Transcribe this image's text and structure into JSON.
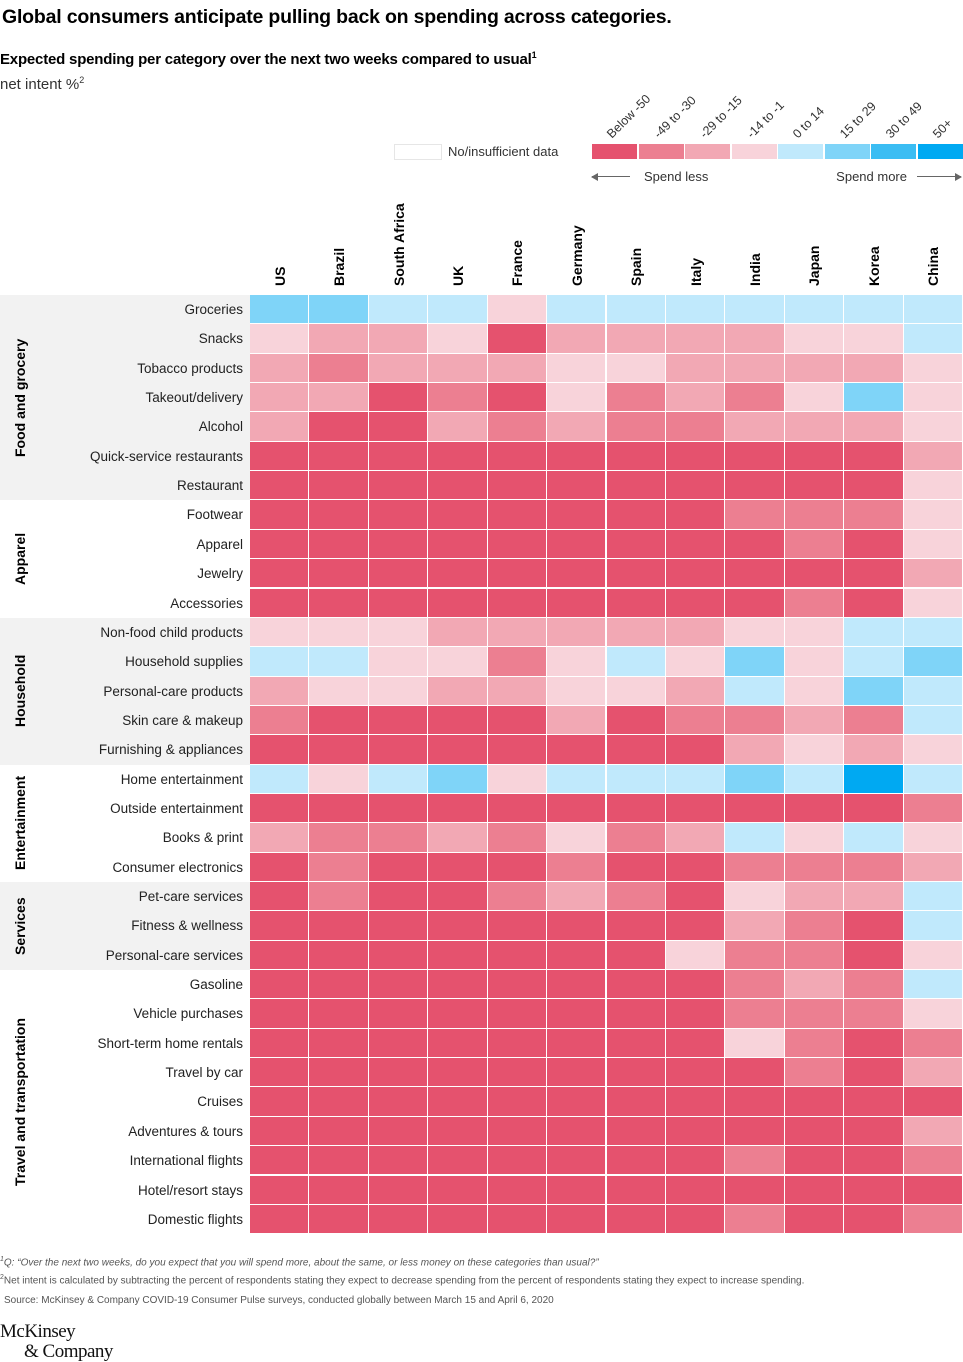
{
  "chart_data": {
    "type": "heatmap",
    "title": "Global consumers anticipate pulling back on spending across categories.",
    "subtitle": "Expected spending per category over the next two weeks compared to usual",
    "subtitle_footnote": "1",
    "unit": "net intent %",
    "unit_footnote": "2",
    "legend": {
      "no_data_label": "No/insufficient data",
      "bins": [
        "Below -50",
        "-49 to -30",
        "-29 to -15",
        "-14 to -1",
        "0 to 14",
        "15 to 29",
        "30 to 49",
        "50+"
      ],
      "colors": [
        "#e5526e",
        "#ec7f91",
        "#f2a8b4",
        "#f8d3da",
        "#c0e9fc",
        "#7fd4f8",
        "#3bbdf3",
        "#00a9f2"
      ],
      "spend_less_label": "Spend less",
      "spend_more_label": "Spend more",
      "placement": "top-right"
    },
    "columns": [
      "US",
      "Brazil",
      "South Africa",
      "UK",
      "France",
      "Germany",
      "Spain",
      "Italy",
      "India",
      "Japan",
      "Korea",
      "China"
    ],
    "groups": [
      {
        "name": "Food and grocery",
        "rows": [
          {
            "label": "Groceries",
            "bins": [
              5,
              5,
              4,
              4,
              3,
              4,
              4,
              4,
              4,
              4,
              4,
              4
            ]
          },
          {
            "label": "Snacks",
            "bins": [
              3,
              2,
              2,
              3,
              0,
              2,
              2,
              2,
              2,
              3,
              3,
              4
            ]
          },
          {
            "label": "Tobacco products",
            "bins": [
              2,
              1,
              2,
              2,
              2,
              3,
              3,
              2,
              2,
              2,
              2,
              3
            ]
          },
          {
            "label": "Takeout/delivery",
            "bins": [
              2,
              2,
              0,
              1,
              0,
              3,
              1,
              2,
              1,
              3,
              5,
              3
            ]
          },
          {
            "label": "Alcohol",
            "bins": [
              2,
              0,
              0,
              2,
              1,
              2,
              1,
              1,
              2,
              2,
              2,
              3
            ]
          },
          {
            "label": "Quick-service restaurants",
            "bins": [
              0,
              0,
              0,
              0,
              0,
              0,
              0,
              0,
              0,
              0,
              0,
              2
            ]
          },
          {
            "label": "Restaurant",
            "bins": [
              0,
              0,
              0,
              0,
              0,
              0,
              0,
              0,
              0,
              0,
              0,
              3
            ]
          }
        ]
      },
      {
        "name": "Apparel",
        "rows": [
          {
            "label": "Footwear",
            "bins": [
              0,
              0,
              0,
              0,
              0,
              0,
              0,
              0,
              1,
              1,
              1,
              3
            ]
          },
          {
            "label": "Apparel",
            "bins": [
              0,
              0,
              0,
              0,
              0,
              0,
              0,
              0,
              0,
              1,
              0,
              3
            ]
          },
          {
            "label": "Jewelry",
            "bins": [
              0,
              0,
              0,
              0,
              0,
              0,
              0,
              0,
              0,
              0,
              0,
              2
            ]
          },
          {
            "label": "Accessories",
            "bins": [
              0,
              0,
              0,
              0,
              0,
              0,
              0,
              0,
              0,
              1,
              0,
              3
            ]
          }
        ]
      },
      {
        "name": "Household",
        "rows": [
          {
            "label": "Non-food child products",
            "bins": [
              3,
              3,
              3,
              2,
              2,
              2,
              2,
              2,
              3,
              3,
              4,
              4
            ]
          },
          {
            "label": "Household supplies",
            "bins": [
              4,
              4,
              3,
              3,
              1,
              3,
              4,
              3,
              5,
              3,
              4,
              5
            ]
          },
          {
            "label": "Personal-care products",
            "bins": [
              2,
              3,
              3,
              2,
              2,
              3,
              3,
              2,
              4,
              3,
              5,
              4
            ]
          },
          {
            "label": "Skin care & makeup",
            "bins": [
              1,
              0,
              0,
              0,
              0,
              2,
              0,
              1,
              1,
              2,
              1,
              4
            ]
          },
          {
            "label": "Furnishing & appliances",
            "bins": [
              0,
              0,
              0,
              0,
              0,
              0,
              0,
              0,
              2,
              3,
              2,
              3
            ]
          }
        ]
      },
      {
        "name": "Entertainment",
        "rows": [
          {
            "label": "Home entertainment",
            "bins": [
              4,
              3,
              4,
              5,
              3,
              4,
              4,
              4,
              5,
              4,
              7,
              4
            ]
          },
          {
            "label": "Outside entertainment",
            "bins": [
              0,
              0,
              0,
              0,
              0,
              0,
              0,
              0,
              0,
              0,
              0,
              1
            ]
          },
          {
            "label": "Books & print",
            "bins": [
              2,
              1,
              1,
              2,
              1,
              3,
              1,
              2,
              4,
              3,
              4,
              3
            ]
          },
          {
            "label": "Consumer electronics",
            "bins": [
              0,
              1,
              0,
              0,
              0,
              1,
              0,
              0,
              1,
              1,
              1,
              2
            ]
          }
        ]
      },
      {
        "name": "Services",
        "rows": [
          {
            "label": "Pet-care services",
            "bins": [
              0,
              1,
              0,
              0,
              1,
              2,
              1,
              0,
              3,
              2,
              2,
              4
            ]
          },
          {
            "label": "Fitness & wellness",
            "bins": [
              0,
              0,
              0,
              0,
              0,
              0,
              0,
              0,
              2,
              1,
              0,
              4
            ]
          },
          {
            "label": "Personal-care services",
            "bins": [
              0,
              0,
              0,
              0,
              0,
              0,
              0,
              3,
              1,
              1,
              0,
              3
            ]
          }
        ]
      },
      {
        "name": "Travel and transportation",
        "rows": [
          {
            "label": "Gasoline",
            "bins": [
              0,
              0,
              0,
              0,
              0,
              0,
              0,
              0,
              1,
              2,
              1,
              4
            ]
          },
          {
            "label": "Vehicle purchases",
            "bins": [
              0,
              0,
              0,
              0,
              0,
              0,
              0,
              0,
              1,
              1,
              1,
              3
            ]
          },
          {
            "label": "Short-term home rentals",
            "bins": [
              0,
              0,
              0,
              0,
              0,
              0,
              0,
              0,
              3,
              1,
              0,
              1
            ]
          },
          {
            "label": "Travel by car",
            "bins": [
              0,
              0,
              0,
              0,
              0,
              0,
              0,
              0,
              0,
              1,
              0,
              2
            ]
          },
          {
            "label": "Cruises",
            "bins": [
              0,
              0,
              0,
              0,
              0,
              0,
              0,
              0,
              0,
              0,
              0,
              0
            ]
          },
          {
            "label": "Adventures & tours",
            "bins": [
              0,
              0,
              0,
              0,
              0,
              0,
              0,
              0,
              0,
              0,
              0,
              2
            ]
          },
          {
            "label": "International flights",
            "bins": [
              0,
              0,
              0,
              0,
              0,
              0,
              0,
              0,
              1,
              0,
              0,
              1
            ]
          },
          {
            "label": "Hotel/resort stays",
            "bins": [
              0,
              0,
              0,
              0,
              0,
              0,
              0,
              0,
              0,
              0,
              0,
              0
            ]
          },
          {
            "label": "Domestic flights",
            "bins": [
              0,
              0,
              0,
              0,
              0,
              0,
              0,
              0,
              1,
              0,
              0,
              1
            ]
          }
        ]
      }
    ]
  },
  "footnotes": {
    "fn1_marker": "1",
    "fn1_text": "Q: “Over the next two weeks, do you expect that you will spend more, about the same, or less money on these categories than usual?”",
    "fn2_marker": "2",
    "fn2_text": "Net intent is calculated by subtracting the percent of respondents stating they expect to decrease spending from the percent of respondents stating they expect to increase spending.",
    "source": "Source: McKinsey & Company COVID-19 Consumer Pulse surveys, conducted globally between March 15 and April 6, 2020"
  },
  "logo": {
    "line1": "McKinsey",
    "line2": "& Company"
  }
}
